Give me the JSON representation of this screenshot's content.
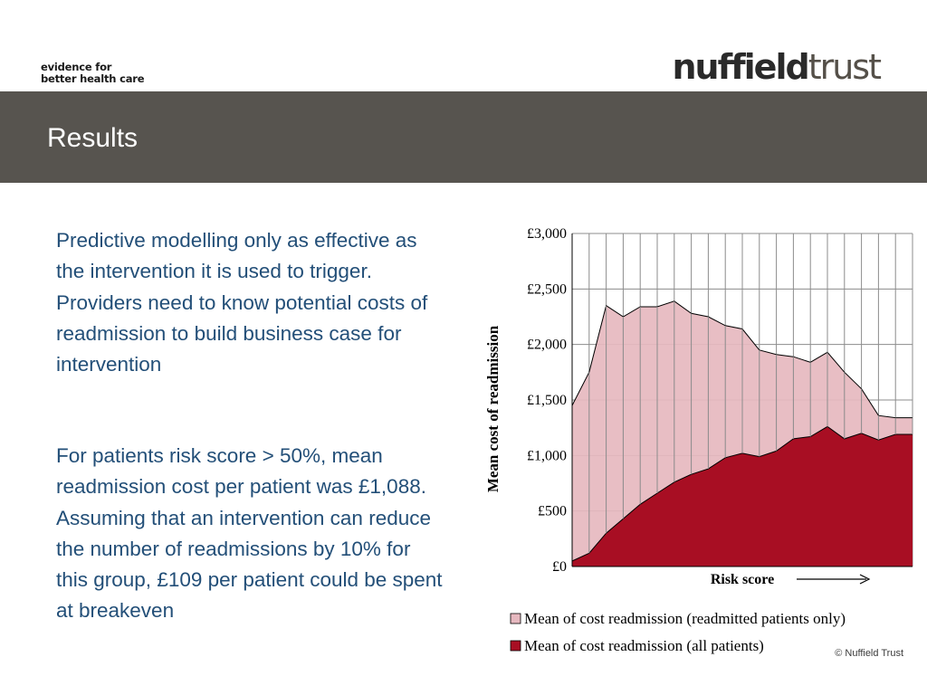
{
  "header": {
    "tagline_line1": "evidence for",
    "tagline_line2": "better health care",
    "brand_part1": "nuffield",
    "brand_part2": "trust"
  },
  "slide": {
    "title": "Results",
    "paragraph1": "Predictive modelling only as effective as the intervention it is used to trigger. Providers need to know potential costs of readmission to build business case for intervention",
    "paragraph2": "For patients risk score > 50%, mean readmission cost per patient was £1,088. Assuming that an intervention can reduce the number of readmissions by 10% for this group, £109 per patient could be spent at breakeven",
    "copyright": "© Nuffield Trust"
  },
  "colors": {
    "title_bar": "#57544f",
    "body_text": "#234f78",
    "series_readmitted": "#e6b8bf",
    "series_all": "#a80e23"
  },
  "chart_data": {
    "type": "area",
    "xlabel": "Risk score",
    "ylabel": "Mean cost of readmission",
    "ylim": [
      0,
      3000
    ],
    "yticks": [
      0,
      500,
      1000,
      1500,
      2000,
      2500,
      3000
    ],
    "ytick_labels": [
      "£0",
      "£500",
      "£1,000",
      "£1,500",
      "£2,000",
      "£2,500",
      "£3,000"
    ],
    "x": [
      1,
      2,
      3,
      4,
      5,
      6,
      7,
      8,
      9,
      10,
      11,
      12,
      13,
      14,
      15,
      16,
      17,
      18,
      19,
      20,
      21
    ],
    "grid": true,
    "legend_position": "bottom",
    "series": [
      {
        "name": "Mean of cost readmission (readmitted patients only)",
        "color": "#e6b8bf",
        "values": [
          1450,
          1750,
          2350,
          2250,
          2340,
          2340,
          2390,
          2280,
          2250,
          2170,
          2140,
          1950,
          1910,
          1890,
          1840,
          1930,
          1750,
          1600,
          1360,
          1340,
          1340
        ]
      },
      {
        "name": "Mean of cost readmission (all patients)",
        "color": "#a80e23",
        "values": [
          50,
          120,
          300,
          430,
          560,
          660,
          760,
          830,
          880,
          980,
          1020,
          990,
          1040,
          1150,
          1170,
          1260,
          1150,
          1200,
          1140,
          1190,
          1190
        ]
      }
    ]
  }
}
